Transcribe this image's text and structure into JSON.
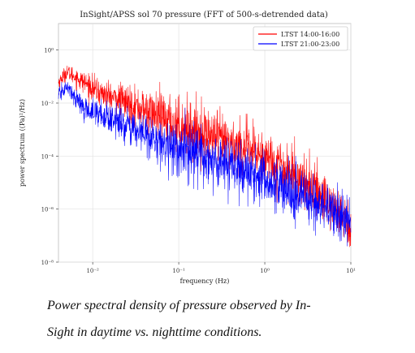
{
  "chart_data": {
    "type": "line",
    "title": "InSight/APSS sol 70 pressure (FFT of 500-s-detrended data)",
    "xlabel": "frequency (Hz)",
    "ylabel": "power spectrum ((Pa)²/Hz)",
    "xscale": "log",
    "yscale": "log",
    "xlim": [
      0.004,
      10
    ],
    "ylim": [
      1e-08,
      10
    ],
    "x_ticks": [
      {
        "value": 0.01,
        "label": "10⁻²"
      },
      {
        "value": 0.1,
        "label": "10⁻¹"
      },
      {
        "value": 1,
        "label": "10⁰"
      },
      {
        "value": 10,
        "label": "10¹"
      }
    ],
    "y_ticks": [
      {
        "value": 1,
        "label": "10⁰"
      },
      {
        "value": 0.01,
        "label": "10⁻²"
      },
      {
        "value": 0.0001,
        "label": "10⁻⁴"
      },
      {
        "value": 1e-06,
        "label": "10⁻⁶"
      },
      {
        "value": 1e-08,
        "label": "10⁻⁸"
      }
    ],
    "grid": true,
    "legend_position": "top-right",
    "series": [
      {
        "name": "LTST 14:00-16:00",
        "color": "#ff0000",
        "trend": [
          [
            0.004,
            0.06
          ],
          [
            0.005,
            0.15
          ],
          [
            0.008,
            0.06
          ],
          [
            0.012,
            0.025
          ],
          [
            0.03,
            0.008
          ],
          [
            0.1,
            0.0015
          ],
          [
            0.3,
            0.0004
          ],
          [
            1,
            0.0001
          ],
          [
            3,
            1e-05
          ],
          [
            6,
            1.5e-06
          ],
          [
            10,
            2e-07
          ]
        ]
      },
      {
        "name": "LTST 21:00-23:00",
        "color": "#0000ff",
        "trend": [
          [
            0.004,
            0.02
          ],
          [
            0.005,
            0.04
          ],
          [
            0.008,
            0.006
          ],
          [
            0.012,
            0.004
          ],
          [
            0.03,
            0.001
          ],
          [
            0.1,
            0.00018
          ],
          [
            0.3,
            6e-05
          ],
          [
            1,
            1.2e-05
          ],
          [
            3,
            2.5e-06
          ],
          [
            6,
            8e-07
          ],
          [
            10,
            3e-07
          ]
        ]
      }
    ]
  },
  "caption": {
    "line1": "Power spectral density of pressure observed by In-",
    "line2": "Sight in daytime vs. nighttime conditions."
  }
}
